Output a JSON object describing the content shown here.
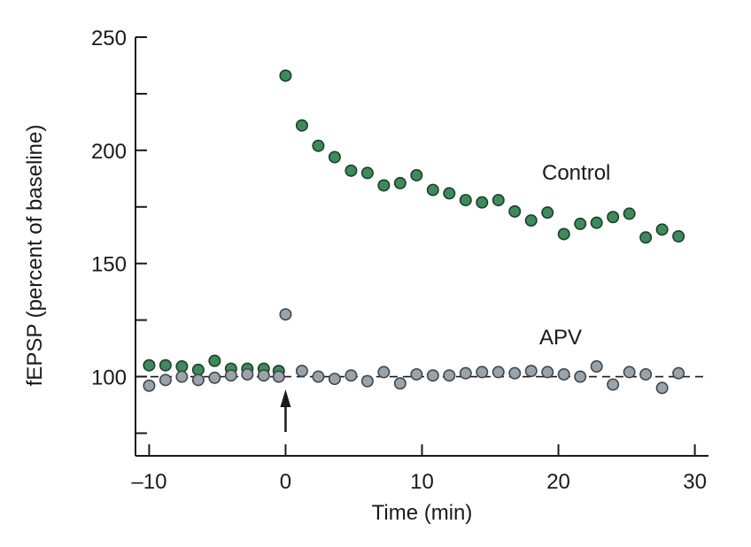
{
  "chart_data": {
    "type": "scatter",
    "title": "",
    "xlabel": "Time (min)",
    "ylabel": "fEPSP (percent of baseline)",
    "xlim": [
      -11,
      31
    ],
    "ylim": [
      65,
      250
    ],
    "xticks": [
      -10,
      0,
      10,
      20,
      30
    ],
    "xtick_labels": [
      "–10",
      "0",
      "10",
      "20",
      "30"
    ],
    "yticks": [
      100,
      150,
      200,
      250
    ],
    "yminor_ticks": [
      75,
      125,
      175,
      225
    ],
    "baseline_value": 100,
    "stimulus_time": 0,
    "colors": {
      "control": "#3e8a5c",
      "apv": "#9aa3aa",
      "axis": "#1a1a1a"
    },
    "series": [
      {
        "name": "Control",
        "label": "Control",
        "color": "#3e8a5c",
        "x": [
          -10,
          -8.8,
          -7.6,
          -6.4,
          -5.2,
          -4.0,
          -2.8,
          -1.6,
          -0.5,
          0,
          1.2,
          2.4,
          3.6,
          4.8,
          6.0,
          7.2,
          8.4,
          9.6,
          10.8,
          12.0,
          13.2,
          14.4,
          15.6,
          16.8,
          18.0,
          19.2,
          20.4,
          21.6,
          22.8,
          24.0,
          25.2,
          26.4,
          27.6,
          28.8
        ],
        "values": [
          105,
          105,
          104.5,
          103,
          107,
          103.5,
          103.5,
          103.5,
          102.5,
          233,
          211,
          202,
          197,
          191,
          190,
          184.5,
          185.5,
          189,
          182.5,
          181,
          178,
          177,
          178,
          173,
          169,
          172.5,
          163,
          167.5,
          168,
          170.5,
          172,
          161.5,
          165,
          162
        ]
      },
      {
        "name": "APV",
        "label": "APV",
        "color": "#9aa3aa",
        "x": [
          -10,
          -8.8,
          -7.6,
          -6.4,
          -5.2,
          -4.0,
          -2.8,
          -1.6,
          -0.5,
          0,
          1.2,
          2.4,
          3.6,
          4.8,
          6.0,
          7.2,
          8.4,
          9.6,
          10.8,
          12.0,
          13.2,
          14.4,
          15.6,
          16.8,
          18.0,
          19.2,
          20.4,
          21.6,
          22.8,
          24.0,
          25.2,
          26.4,
          27.6,
          28.8
        ],
        "values": [
          96,
          98.5,
          100,
          98.5,
          99.5,
          100.5,
          101,
          100.5,
          100,
          127.5,
          102.5,
          100,
          99,
          100.5,
          98,
          102,
          97,
          101,
          100.5,
          100.5,
          101.5,
          102,
          102,
          101.5,
          102.5,
          102,
          101,
          100,
          104.5,
          96.5,
          102,
          101,
          95,
          101.5
        ]
      }
    ],
    "annotations": [
      {
        "text": "Control",
        "series": "Control"
      },
      {
        "text": "APV",
        "series": "APV"
      }
    ]
  }
}
